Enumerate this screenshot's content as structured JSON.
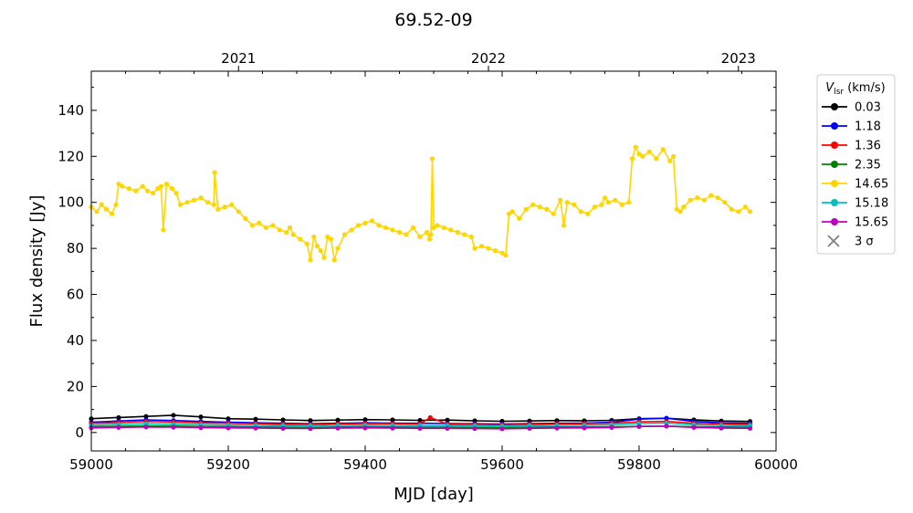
{
  "chart_data": {
    "type": "line",
    "title": "69.52-09",
    "xlabel": "MJD [day]",
    "ylabel": "Flux density [Jy]",
    "xlim": [
      59000,
      60000
    ],
    "ylim": [
      -8,
      157
    ],
    "x_major_ticks": [
      59000,
      59200,
      59400,
      59600,
      59800,
      60000
    ],
    "x_major_tick_labels": [
      "59000",
      "59200",
      "59400",
      "59600",
      "59800",
      "60000"
    ],
    "y_major_ticks": [
      0,
      20,
      40,
      60,
      80,
      100,
      120,
      140
    ],
    "y_major_tick_labels": [
      "0",
      "20",
      "40",
      "60",
      "80",
      "100",
      "120",
      "140"
    ],
    "top_axis": {
      "ticks": [
        59215,
        59580,
        59945
      ],
      "labels": [
        "2021",
        "2022",
        "2023"
      ]
    },
    "grid": false,
    "legend": {
      "placement": "outside-right-top",
      "title_main": "V",
      "title_sub": "lsr",
      "title_unit": " (km/s)",
      "entries": [
        {
          "label": "0.03",
          "color": "#000000",
          "marker": "circle"
        },
        {
          "label": "1.18",
          "color": "#0000ff",
          "marker": "circle"
        },
        {
          "label": "1.36",
          "color": "#ff0000",
          "marker": "circle"
        },
        {
          "label": "2.35",
          "color": "#008000",
          "marker": "circle"
        },
        {
          "label": "14.65",
          "color": "#ffd700",
          "marker": "circle"
        },
        {
          "label": "15.18",
          "color": "#00bfbf",
          "marker": "circle"
        },
        {
          "label": "15.65",
          "color": "#bf00bf",
          "marker": "circle"
        },
        {
          "label": "3 σ",
          "color": "#808080",
          "marker": "x"
        }
      ]
    },
    "series": [
      {
        "name": "14.65",
        "color": "#ffd700",
        "x": [
          59000,
          59008,
          59015,
          59022,
          59030,
          59036,
          59040,
          59045,
          59055,
          59065,
          59075,
          59082,
          59090,
          59097,
          59102,
          59105,
          59110,
          59118,
          59124,
          59130,
          59140,
          59150,
          59160,
          59170,
          59179,
          59180,
          59185,
          59195,
          59205,
          59215,
          59225,
          59235,
          59245,
          59255,
          59265,
          59275,
          59285,
          59290,
          59295,
          59305,
          59315,
          59320,
          59325,
          59330,
          59335,
          59340,
          59345,
          59350,
          59355,
          59360,
          59370,
          59380,
          59390,
          59400,
          59410,
          59420,
          59430,
          59440,
          59450,
          59460,
          59470,
          59480,
          59490,
          59494,
          59496,
          59498,
          59500,
          59505,
          59515,
          59525,
          59535,
          59545,
          59555,
          59560,
          59570,
          59580,
          59590,
          59600,
          59605,
          59610,
          59615,
          59625,
          59635,
          59645,
          59655,
          59665,
          59675,
          59685,
          59690,
          59695,
          59705,
          59715,
          59725,
          59735,
          59745,
          59750,
          59755,
          59765,
          59775,
          59785,
          59790,
          59795,
          59800,
          59805,
          59815,
          59825,
          59835,
          59845,
          59850,
          59855,
          59860,
          59865,
          59875,
          59885,
          59895,
          59905,
          59915,
          59925,
          59935,
          59945,
          59955,
          59962
        ],
        "values": [
          98,
          96,
          99,
          97,
          95,
          99,
          108,
          107,
          106,
          105,
          107,
          105,
          104,
          106,
          107,
          88,
          108,
          106,
          104,
          99,
          100,
          101,
          102,
          100,
          99,
          113,
          97,
          98,
          99,
          96,
          93,
          90,
          91,
          89,
          90,
          88,
          87,
          89,
          86,
          84,
          82,
          75,
          85,
          81,
          79,
          76,
          85,
          84,
          75,
          80,
          86,
          88,
          90,
          91,
          92,
          90,
          89,
          88,
          87,
          86,
          89,
          85,
          87,
          84,
          86,
          119,
          89,
          90,
          89,
          88,
          87,
          86,
          85,
          80,
          81,
          80,
          79,
          78,
          77,
          95,
          96,
          93,
          97,
          99,
          98,
          97,
          95,
          101,
          90,
          100,
          99,
          96,
          95,
          98,
          99,
          102,
          100,
          101,
          99,
          100,
          119,
          124,
          121,
          120,
          122,
          119,
          123,
          118,
          120,
          97,
          96,
          98,
          101,
          102,
          101,
          103,
          102,
          100,
          97,
          96,
          98,
          96
        ]
      },
      {
        "name": "0.03",
        "color": "#000000",
        "x": [
          59000,
          59040,
          59080,
          59120,
          59160,
          59200,
          59240,
          59280,
          59320,
          59360,
          59400,
          59440,
          59480,
          59520,
          59560,
          59600,
          59640,
          59680,
          59720,
          59760,
          59800,
          59840,
          59880,
          59920,
          59962
        ],
        "values": [
          6,
          6.5,
          7,
          7.5,
          6.8,
          6,
          5.8,
          5.5,
          5.2,
          5.4,
          5.6,
          5.5,
          5.3,
          5.4,
          5.1,
          4.9,
          5,
          5.2,
          5.1,
          5.3,
          6,
          6.2,
          5.5,
          5,
          4.8
        ]
      },
      {
        "name": "1.18",
        "color": "#0000ff",
        "x": [
          59000,
          59040,
          59080,
          59120,
          59160,
          59200,
          59240,
          59280,
          59320,
          59360,
          59400,
          59440,
          59480,
          59520,
          59560,
          59600,
          59640,
          59680,
          59720,
          59760,
          59800,
          59840,
          59880,
          59920,
          59962
        ],
        "values": [
          4.5,
          5,
          5.5,
          5.2,
          4.8,
          4.5,
          4.2,
          4,
          3.8,
          4,
          4.2,
          4.1,
          4,
          3.9,
          3.8,
          3.7,
          3.9,
          4,
          4.1,
          4.5,
          5.8,
          6.2,
          4.8,
          4.2,
          4
        ]
      },
      {
        "name": "1.36",
        "color": "#ff0000",
        "x": [
          59000,
          59040,
          59080,
          59120,
          59160,
          59200,
          59240,
          59280,
          59320,
          59360,
          59400,
          59440,
          59480,
          59495,
          59520,
          59560,
          59600,
          59640,
          59680,
          59720,
          59760,
          59800,
          59840,
          59880,
          59920,
          59962
        ],
        "values": [
          4,
          4.3,
          4.8,
          4.5,
          4.2,
          4,
          3.8,
          3.6,
          3.5,
          3.7,
          3.9,
          3.8,
          3.7,
          6.5,
          3.6,
          3.5,
          3.4,
          3.6,
          3.7,
          3.8,
          4.1,
          4.6,
          4.8,
          4,
          3.7,
          3.5
        ]
      },
      {
        "name": "2.35",
        "color": "#008000",
        "x": [
          59000,
          59040,
          59080,
          59120,
          59160,
          59200,
          59240,
          59280,
          59320,
          59360,
          59400,
          59440,
          59480,
          59520,
          59560,
          59600,
          59640,
          59680,
          59720,
          59760,
          59800,
          59840,
          59880,
          59920,
          59962
        ],
        "values": [
          2.5,
          2.7,
          2.9,
          2.8,
          2.6,
          2.5,
          2.4,
          2.3,
          2.2,
          2.4,
          2.5,
          2.4,
          2.3,
          2.3,
          2.2,
          2.1,
          2.3,
          2.4,
          2.4,
          2.5,
          2.7,
          2.8,
          2.5,
          2.4,
          2.3
        ]
      },
      {
        "name": "15.18",
        "color": "#00bfbf",
        "x": [
          59000,
          59040,
          59080,
          59120,
          59160,
          59200,
          59240,
          59280,
          59320,
          59360,
          59400,
          59440,
          59480,
          59520,
          59560,
          59600,
          59640,
          59680,
          59720,
          59760,
          59800,
          59840,
          59880,
          59920,
          59962
        ],
        "values": [
          3.2,
          3.5,
          3.8,
          3.6,
          3.4,
          3.2,
          3.1,
          3,
          2.9,
          3.1,
          3.2,
          3.1,
          3,
          3,
          2.9,
          2.8,
          3,
          3.1,
          3.2,
          3.4,
          3.9,
          4.1,
          3.4,
          3.1,
          3
        ]
      },
      {
        "name": "15.65",
        "color": "#bf00bf",
        "x": [
          59000,
          59040,
          59080,
          59120,
          59160,
          59200,
          59240,
          59280,
          59320,
          59360,
          59400,
          59440,
          59480,
          59520,
          59560,
          59600,
          59640,
          59680,
          59720,
          59760,
          59800,
          59840,
          59880,
          59920,
          59962
        ],
        "values": [
          2,
          2.2,
          2.4,
          2.3,
          2.1,
          2,
          1.9,
          1.8,
          1.7,
          1.9,
          2,
          1.9,
          1.8,
          1.8,
          1.7,
          1.6,
          1.8,
          1.9,
          2,
          2.2,
          2.6,
          2.8,
          2.2,
          1.9,
          1.8
        ]
      }
    ]
  }
}
